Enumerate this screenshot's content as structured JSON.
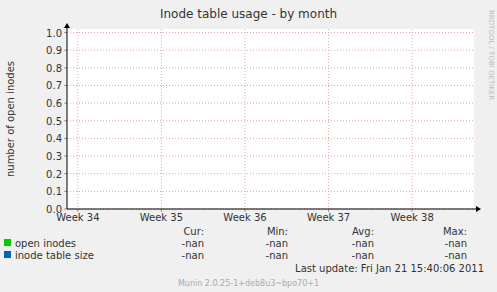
{
  "chart_data": {
    "type": "line",
    "title": "Inode table usage - by month",
    "y_label": "number of open inodes",
    "x": [],
    "xlim": [
      33.87,
      38.74
    ],
    "xticks": [
      {
        "value": 34,
        "label": "Week 34"
      },
      {
        "value": 35,
        "label": "Week 35"
      },
      {
        "value": 36,
        "label": "Week 36"
      },
      {
        "value": 37,
        "label": "Week 37"
      },
      {
        "value": 38,
        "label": "Week 38"
      }
    ],
    "ylim": [
      0,
      1.02
    ],
    "yticks": [
      {
        "value": 0,
        "label": "0.0"
      },
      0.1,
      0.2,
      0.3,
      0.4,
      0.5,
      0.6,
      0.7,
      0.8,
      0.9,
      {
        "value": 1,
        "label": "1.0"
      }
    ],
    "grid": true,
    "legend": "bottom",
    "legend_columns": [
      "Cur:",
      "Min:",
      "Avg:",
      "Max:"
    ],
    "series": [
      {
        "name": "open inodes",
        "color": "#00cc00",
        "values": [],
        "stats": [
          "-nan",
          "-nan",
          "-nan",
          "-nan"
        ]
      },
      {
        "name": "inode table size",
        "color": "#0066b3",
        "values": [],
        "stats": [
          "-nan",
          "-nan",
          "-nan",
          "-nan"
        ]
      }
    ],
    "last_update": "Last update:  Fri Jan 21 15:40:06 2011",
    "watermark": "RRDTOOL / TOBI OETIKER",
    "footer": "Munin 2.0.25-1+deb8u3~bpo70+1"
  }
}
